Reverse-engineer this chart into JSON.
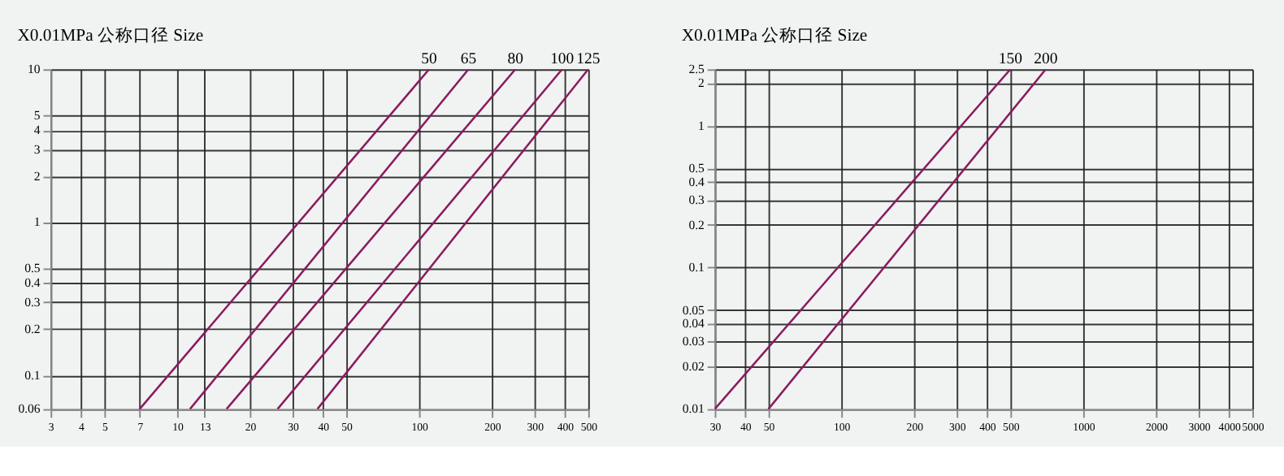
{
  "chart_data": [
    {
      "type": "line",
      "title": "X0.01MPa 公称口径 Size",
      "log": "xy",
      "grid": true,
      "legend": false,
      "xlim": [
        3,
        500
      ],
      "ylim": [
        0.06,
        10
      ],
      "xticks": [
        3,
        4,
        5,
        7,
        10,
        13,
        20,
        30,
        40,
        50,
        100,
        200,
        300,
        400,
        500
      ],
      "yticks": [
        0.06,
        0.1,
        0.2,
        0.3,
        0.4,
        0.5,
        1,
        2,
        3,
        4,
        5,
        10
      ],
      "series": [
        {
          "name": "50",
          "color": "#8b1a5e",
          "x": [
            7,
            110
          ],
          "values": [
            0.06,
            10
          ]
        },
        {
          "name": "65",
          "color": "#8b1a5e",
          "x": [
            11.3,
            160
          ],
          "values": [
            0.06,
            10
          ]
        },
        {
          "name": "80",
          "color": "#8b1a5e",
          "x": [
            16,
            250
          ],
          "values": [
            0.06,
            10
          ]
        },
        {
          "name": "100",
          "color": "#8b1a5e",
          "x": [
            26,
            390
          ],
          "values": [
            0.06,
            10
          ]
        },
        {
          "name": "125",
          "color": "#8b1a5e",
          "x": [
            38,
            500
          ],
          "values": [
            0.06,
            10
          ]
        }
      ]
    },
    {
      "type": "line",
      "title": "X0.01MPa 公称口径 Size",
      "log": "xy",
      "grid": true,
      "legend": false,
      "xlim": [
        30,
        5000
      ],
      "ylim": [
        0.01,
        2.5
      ],
      "xticks": [
        30,
        40,
        50,
        100,
        200,
        300,
        400,
        500,
        1000,
        2000,
        3000,
        4000,
        5000
      ],
      "yticks": [
        0.01,
        0.02,
        0.03,
        0.04,
        0.05,
        0.1,
        0.2,
        0.3,
        0.4,
        0.5,
        1,
        2,
        2.5
      ],
      "series": [
        {
          "name": "150",
          "color": "#8b1a5e",
          "x": [
            30,
            500
          ],
          "values": [
            0.01,
            2.5
          ]
        },
        {
          "name": "200",
          "color": "#8b1a5e",
          "x": [
            50,
            700
          ],
          "values": [
            0.01,
            2.5
          ]
        }
      ]
    }
  ]
}
